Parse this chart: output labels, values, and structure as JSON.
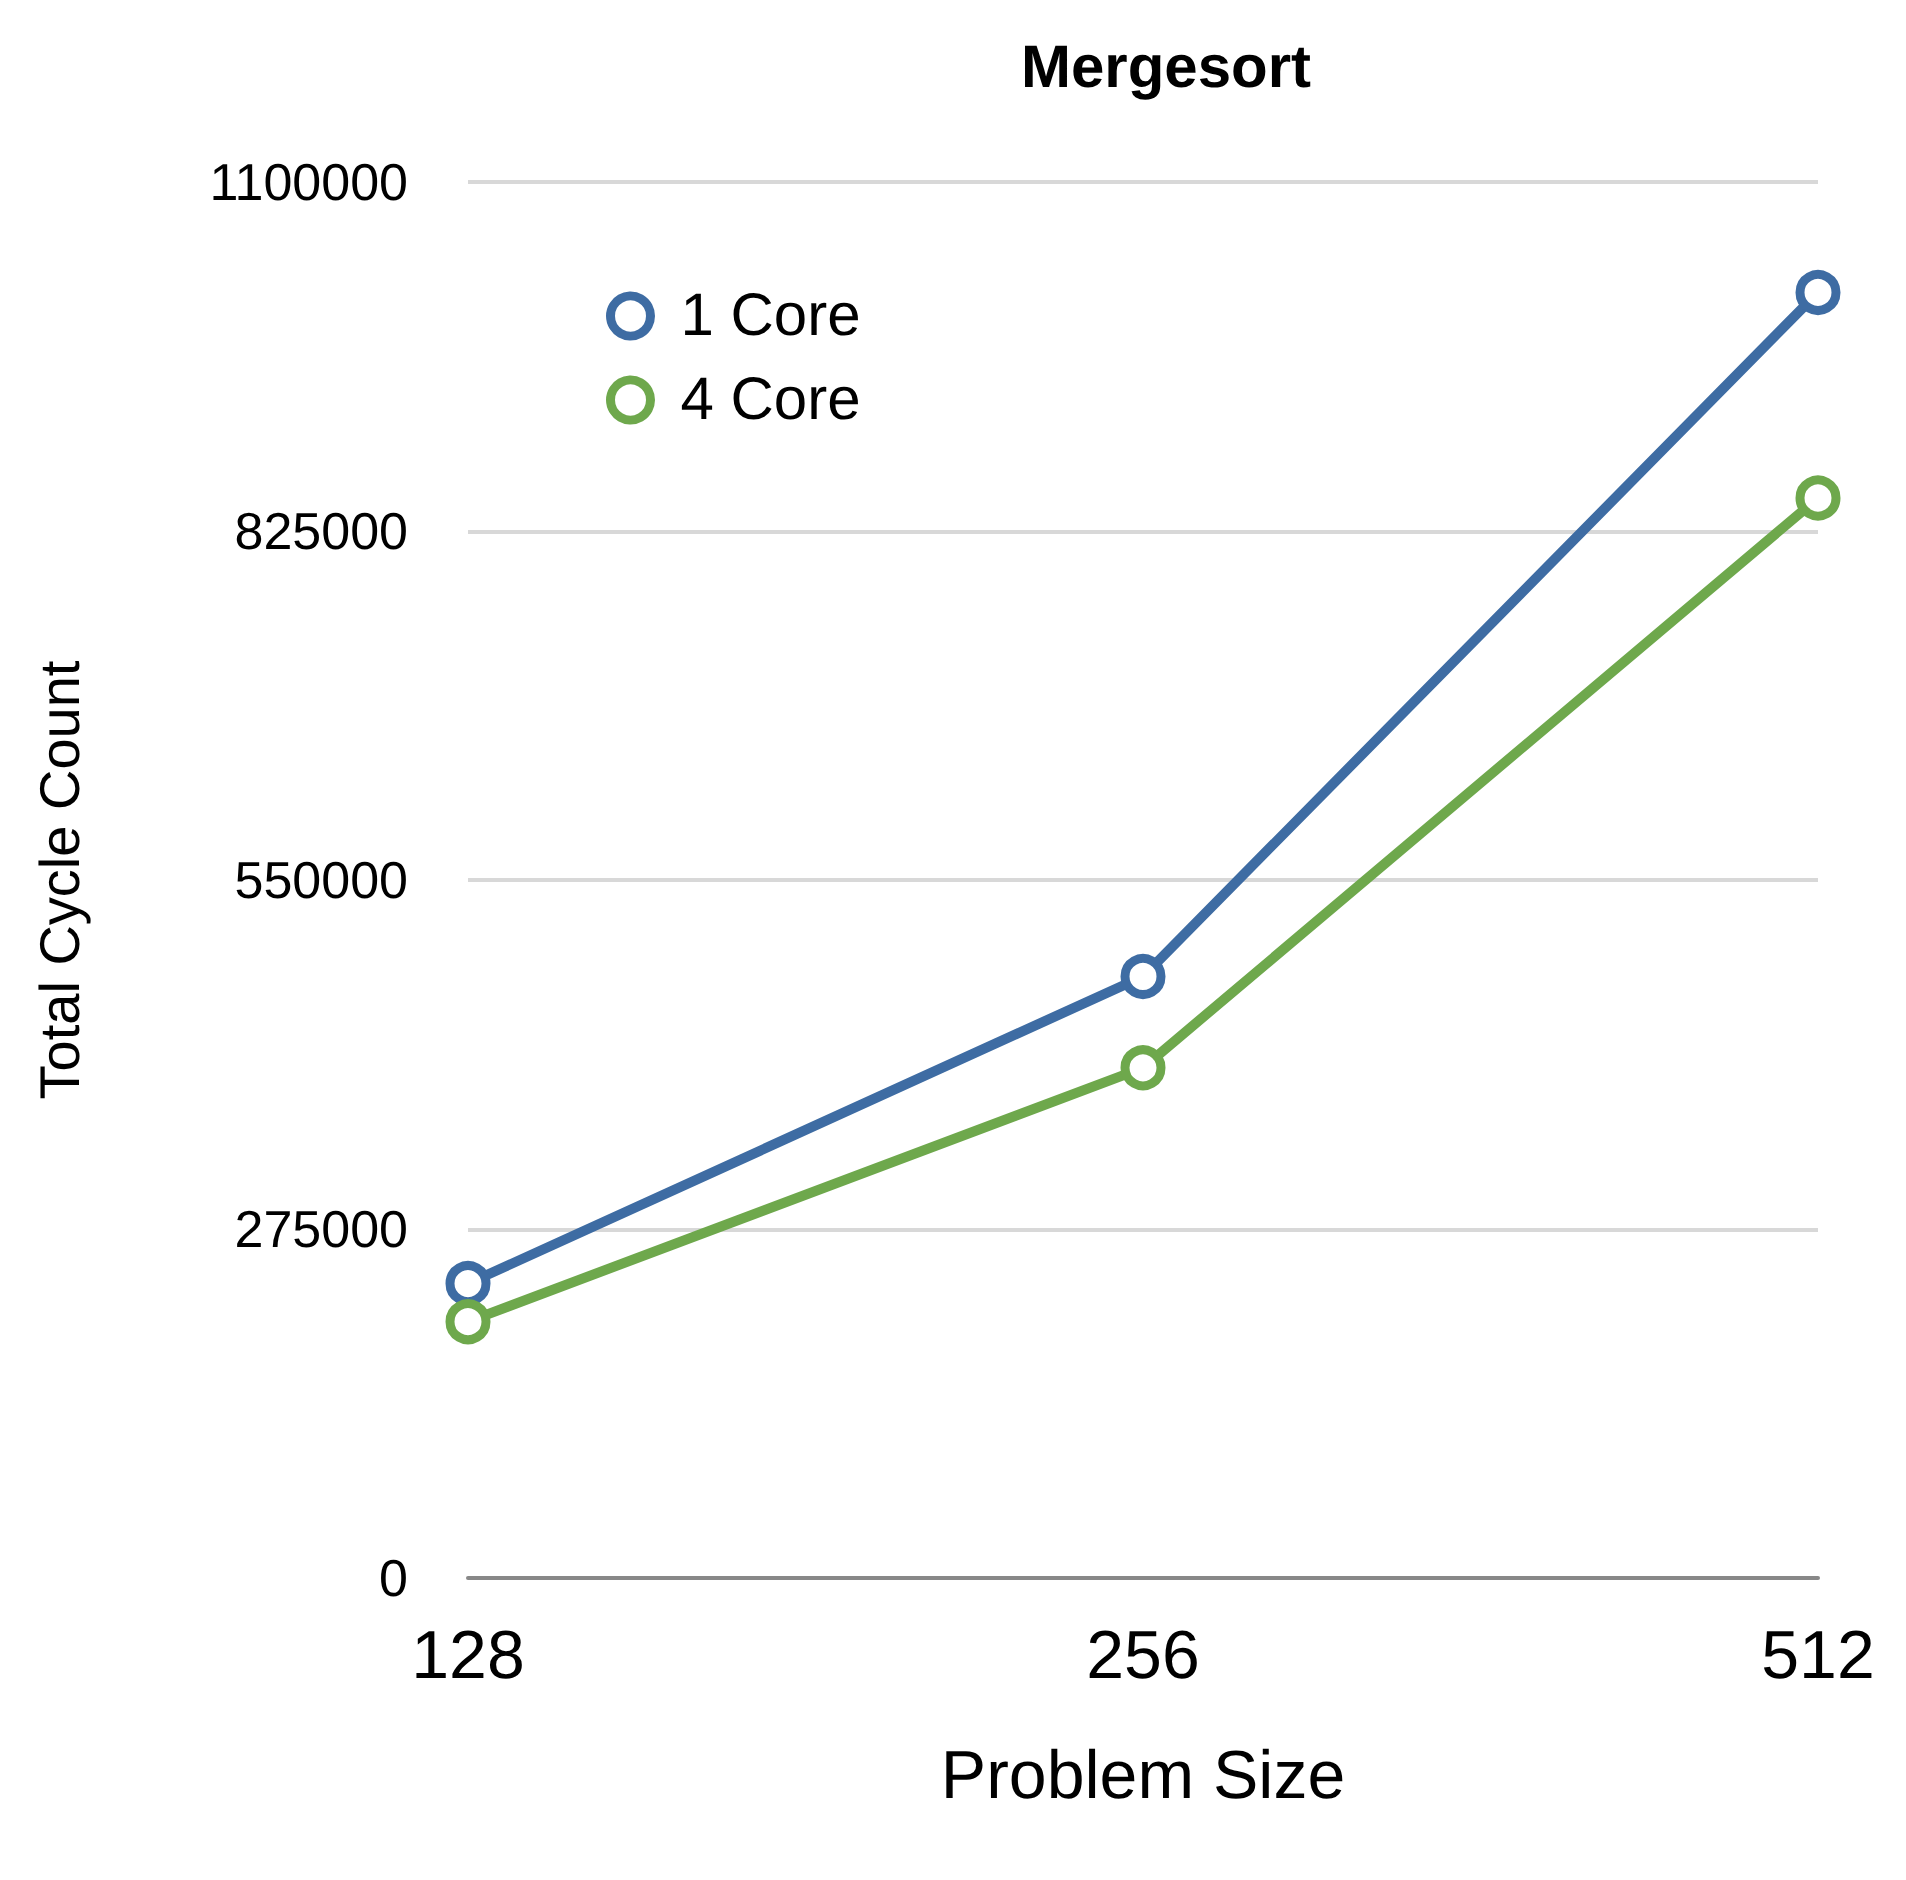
{
  "chart_data": {
    "type": "line",
    "title": "Mergesort",
    "xlabel": "Problem Size",
    "ylabel": "Total Cycle Count",
    "categories": [
      "128",
      "256",
      "512"
    ],
    "series": [
      {
        "name": "1 Core",
        "color": "#3e6ca3",
        "values": [
          232000,
          474000,
          1013000
        ]
      },
      {
        "name": "4 Core",
        "color": "#6ea84c",
        "values": [
          202000,
          402000,
          851000
        ]
      }
    ],
    "ylim": [
      0,
      1100000
    ],
    "yticks": [
      0,
      275000,
      550000,
      825000,
      1100000
    ],
    "grid": "y",
    "legend": "top left",
    "marker": "circle",
    "line_style": "solid"
  }
}
